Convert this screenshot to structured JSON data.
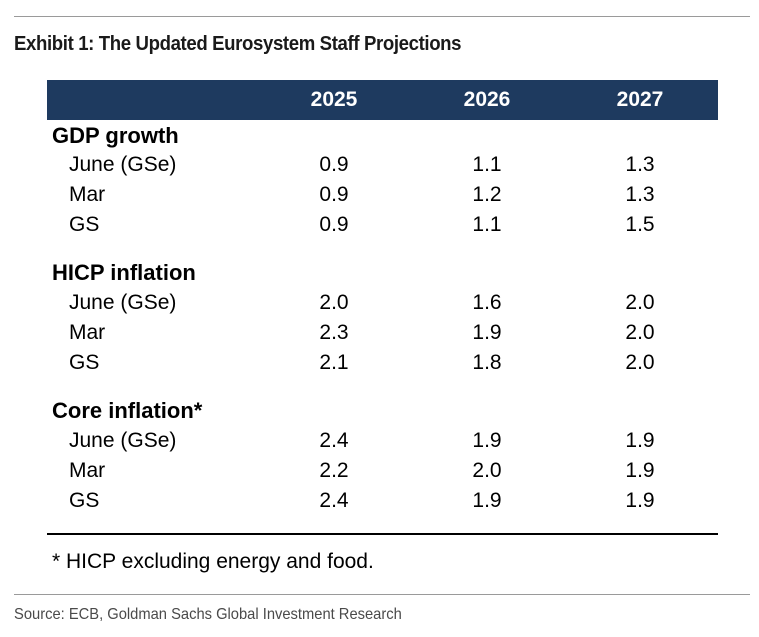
{
  "exhibit": {
    "title": "Exhibit 1: The Updated Eurosystem Staff Projections",
    "footnote": "* HICP excluding energy and food.",
    "source": "Source: ECB, Goldman Sachs Global Investment Research"
  },
  "table": {
    "columns": [
      "2025",
      "2026",
      "2027"
    ],
    "header_color": "#1e3a5f",
    "sections": [
      {
        "title": "GDP growth",
        "rows": [
          {
            "label": "June (GSe)",
            "values": [
              "0.9",
              "1.1",
              "1.3"
            ]
          },
          {
            "label": "Mar",
            "values": [
              "0.9",
              "1.2",
              "1.3"
            ]
          },
          {
            "label": "GS",
            "values": [
              "0.9",
              "1.1",
              "1.5"
            ]
          }
        ]
      },
      {
        "title": "HICP inflation",
        "rows": [
          {
            "label": "June (GSe)",
            "values": [
              "2.0",
              "1.6",
              "2.0"
            ]
          },
          {
            "label": "Mar",
            "values": [
              "2.3",
              "1.9",
              "2.0"
            ]
          },
          {
            "label": "GS",
            "values": [
              "2.1",
              "1.8",
              "2.0"
            ]
          }
        ]
      },
      {
        "title": "Core inflation*",
        "rows": [
          {
            "label": "June (GSe)",
            "values": [
              "2.4",
              "1.9",
              "1.9"
            ]
          },
          {
            "label": "Mar",
            "values": [
              "2.2",
              "2.0",
              "1.9"
            ]
          },
          {
            "label": "GS",
            "values": [
              "2.4",
              "1.9",
              "1.9"
            ]
          }
        ]
      }
    ]
  }
}
